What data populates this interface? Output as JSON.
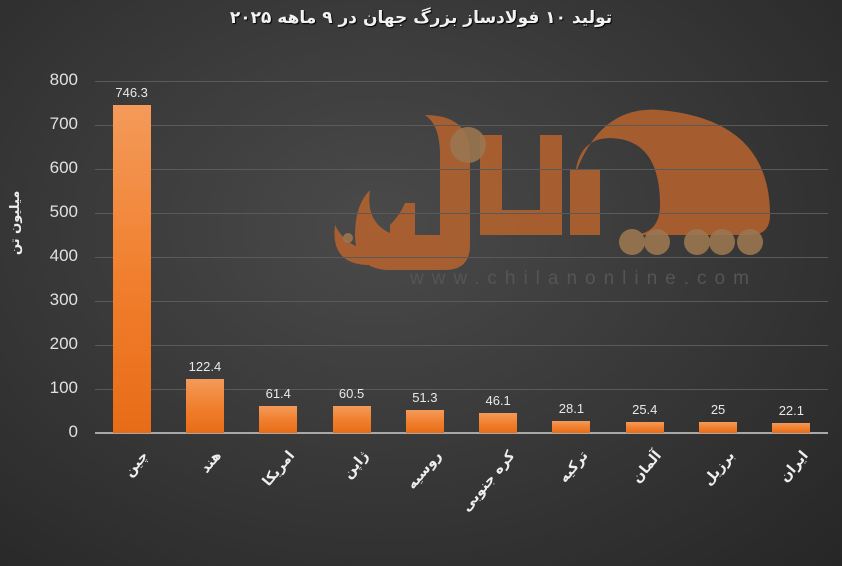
{
  "title": "تولید ۱۰ فولادساز بزرگ جهان در ۹ ماهه ۲۰۲۵",
  "watermark": {
    "url": "www.chilanonline.com",
    "logo": "چیلان آنلاین"
  },
  "colors": {
    "bar": "#f07e2c",
    "background": "#3a3a3a",
    "watermark": "#b8642e"
  },
  "y_axis": {
    "label": "میلیون تن",
    "ticks": [
      "800",
      "700",
      "600",
      "500",
      "400",
      "300",
      "200",
      "100",
      "0"
    ]
  },
  "chart_data": {
    "type": "bar",
    "title": "تولید ۱۰ فولادساز بزرگ جهان در ۹ ماهه ۲۰۲۵",
    "xlabel": "",
    "ylabel": "میلیون تن",
    "ylim": [
      0,
      800
    ],
    "grid": true,
    "legend": "none",
    "categories": [
      "چین",
      "هند",
      "امریکا",
      "ژاپن",
      "روسیه",
      "کره جنوبی",
      "ترکیه",
      "آلمان",
      "برزیل",
      "ایران"
    ],
    "values": [
      746.3,
      122.4,
      61.4,
      60.5,
      51.3,
      46.1,
      28.1,
      25.4,
      25,
      22.1
    ],
    "data_labels": [
      "746.3",
      "122.4",
      "61.4",
      "60.5",
      "51.3",
      "46.1",
      "28.1",
      "25.4",
      "25",
      "22.1"
    ]
  }
}
